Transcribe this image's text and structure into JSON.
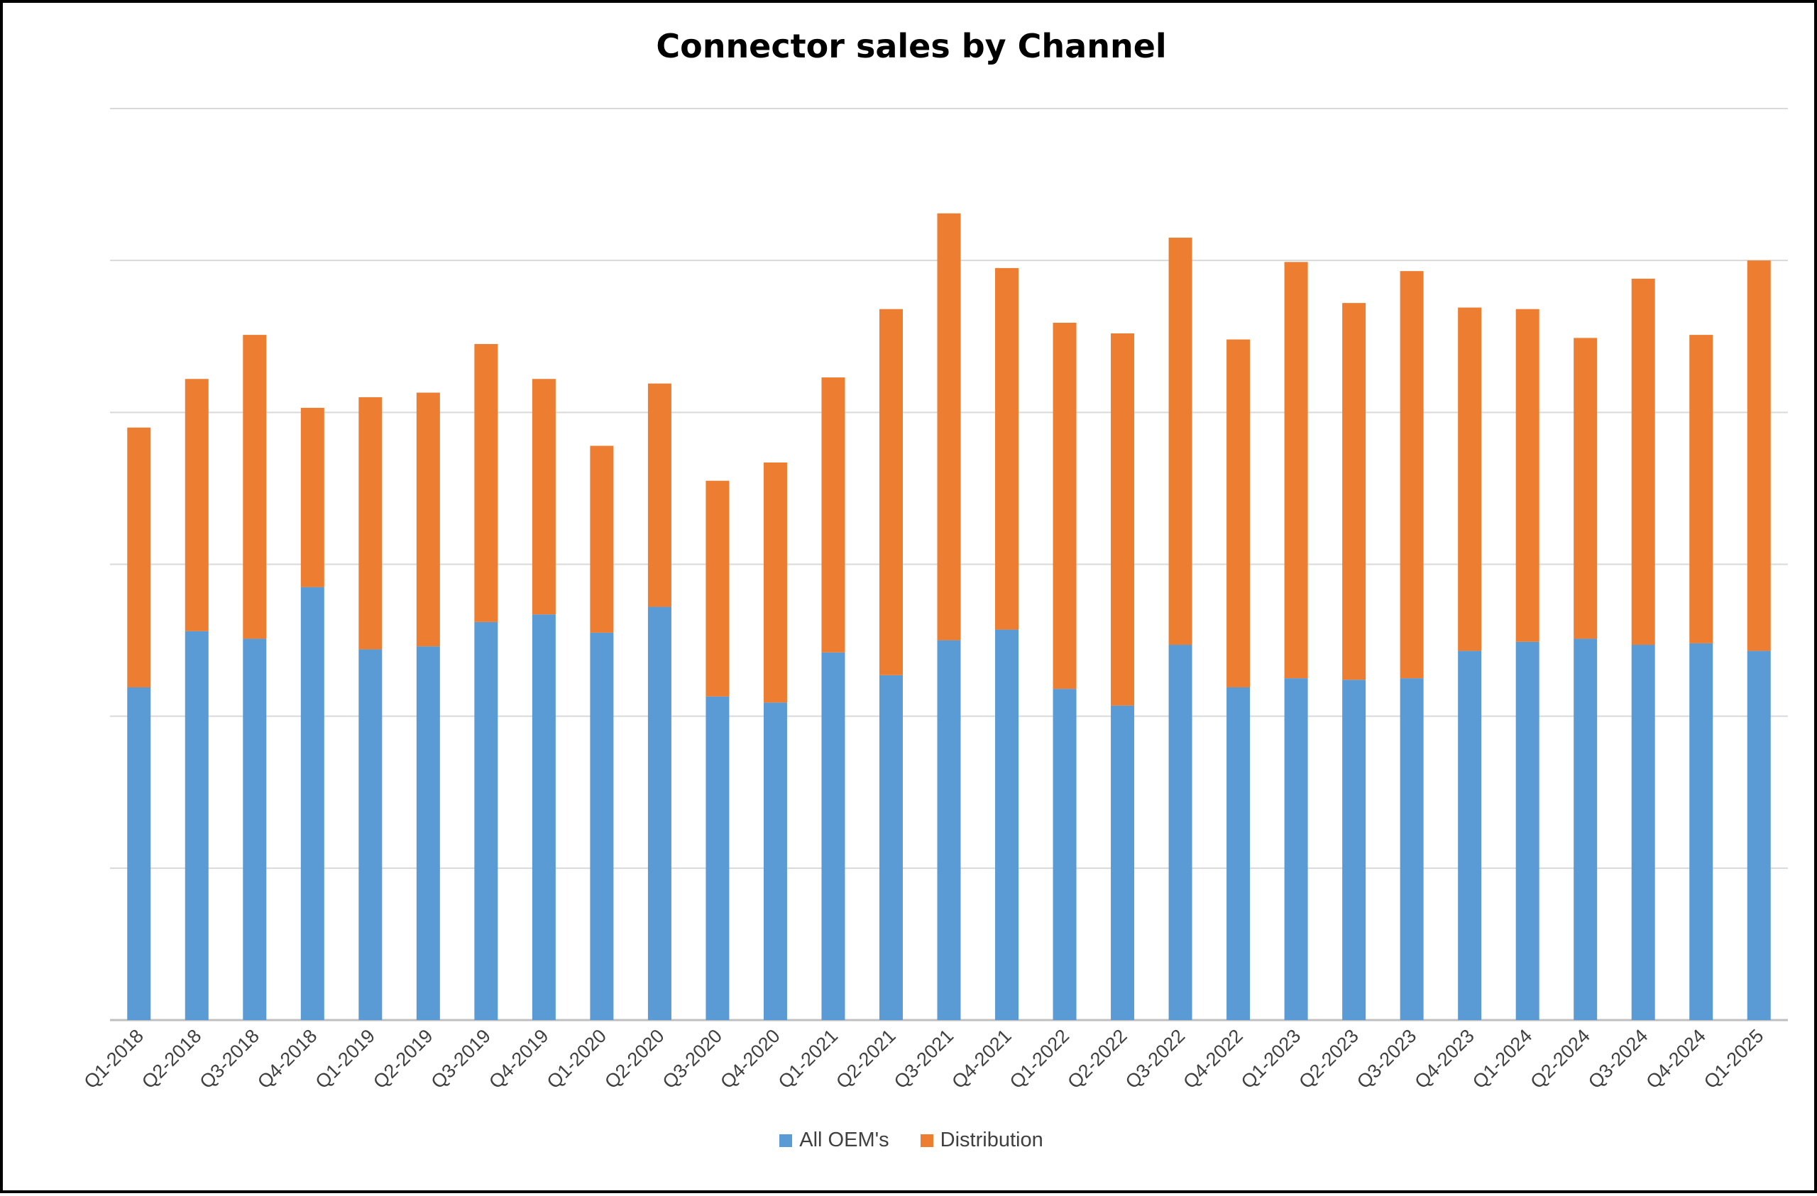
{
  "chart_data": {
    "type": "bar",
    "stacked": true,
    "title": "Connector sales by Channel",
    "xlabel": "",
    "ylabel": "",
    "y_tick_labels_shown": false,
    "ylim": [
      0,
      6
    ],
    "grid": true,
    "legend_position": "bottom",
    "categories": [
      "Q1-2018",
      "Q2-2018",
      "Q3-2018",
      "Q4-2018",
      "Q1-2019",
      "Q2-2019",
      "Q3-2019",
      "Q4-2019",
      "Q1-2020",
      "Q2-2020",
      "Q3-2020",
      "Q4-2020",
      "Q1-2021",
      "Q2-2021",
      "Q3-2021",
      "Q4-2021",
      "Q1-2022",
      "Q2-2022",
      "Q3-2022",
      "Q4-2022",
      "Q1-2023",
      "Q2-2023",
      "Q3-2023",
      "Q4-2023",
      "Q1-2024",
      "Q2-2024",
      "Q3-2024",
      "Q4-2024",
      "Q1-2025"
    ],
    "series": [
      {
        "name": "All OEM's",
        "color": "#5B9BD5",
        "values": [
          2.19,
          2.56,
          2.51,
          2.85,
          2.44,
          2.46,
          2.62,
          2.67,
          2.55,
          2.72,
          2.13,
          2.09,
          2.42,
          2.27,
          2.5,
          2.57,
          2.18,
          2.07,
          2.47,
          2.19,
          2.25,
          2.24,
          2.25,
          2.43,
          2.49,
          2.51,
          2.47,
          2.48,
          2.43
        ]
      },
      {
        "name": "Distribution",
        "color": "#ED7D31",
        "values": [
          1.71,
          1.66,
          2.0,
          1.18,
          1.66,
          1.67,
          1.83,
          1.55,
          1.23,
          1.47,
          1.42,
          1.58,
          1.81,
          2.41,
          2.81,
          2.38,
          2.41,
          2.45,
          2.68,
          2.29,
          2.74,
          2.48,
          2.68,
          2.26,
          2.19,
          1.98,
          2.41,
          2.03,
          2.57
        ]
      }
    ]
  }
}
